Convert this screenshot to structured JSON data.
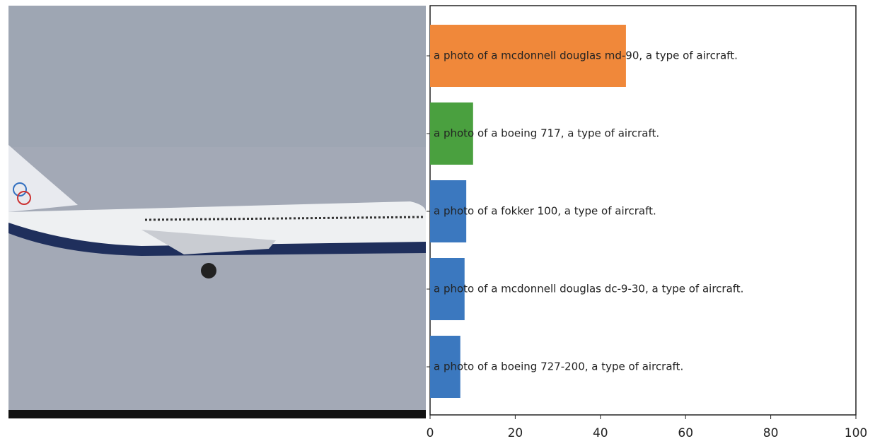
{
  "chart_data": {
    "type": "barh",
    "categories": [
      "a photo of a mcdonnell douglas md-90, a type of aircraft.",
      "a photo of a boeing 717, a type of aircraft.",
      "a photo of a fokker 100, a type of aircraft.",
      "a photo of a mcdonnell douglas dc-9-30, a type of aircraft.",
      "a photo of a boeing 727-200, a type of aircraft."
    ],
    "values": [
      46,
      10.1,
      8.5,
      8.1,
      7.1
    ],
    "colors": [
      "#f0883a",
      "#4aa03f",
      "#3b78bf",
      "#3b78bf",
      "#3b78bf"
    ],
    "xlim": [
      0,
      100
    ],
    "xticks": [
      0,
      20,
      40,
      60,
      80,
      100
    ]
  }
}
